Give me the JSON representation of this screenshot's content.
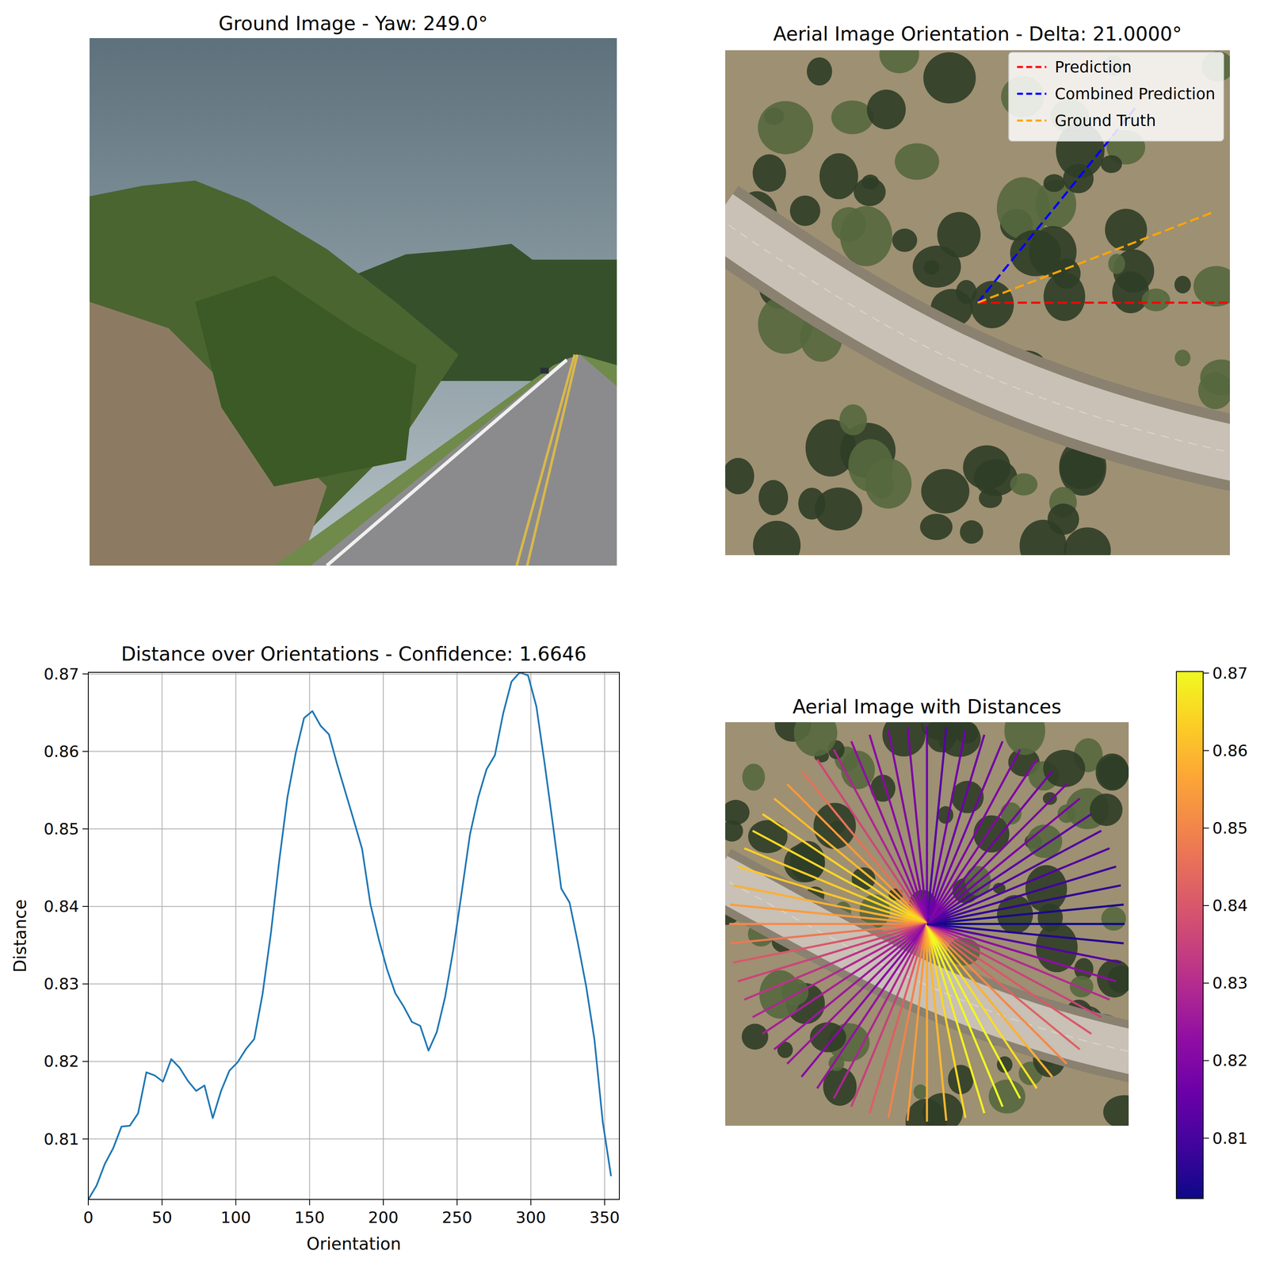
{
  "chart_data": [
    {
      "type": "image",
      "title": "Ground Image - Yaw: 249.0°"
    },
    {
      "type": "orientation_lines",
      "title": "Aerial Image Orientation - Delta: 21.0000°",
      "legend": "upper right",
      "series": [
        {
          "name": "Prediction",
          "color": "#ff0000",
          "line_style": "dashed",
          "values": [
            0
          ]
        },
        {
          "name": "Combined Prediction",
          "color": "#0000ff",
          "line_style": "dashed",
          "values": [
            51
          ]
        },
        {
          "name": "Ground Truth",
          "color": "#ffa500",
          "line_style": "dashed",
          "values": [
            21
          ]
        }
      ]
    },
    {
      "type": "line",
      "title": "Distance over Orientations - Confidence: 1.6646",
      "x_label": "Orientation",
      "y_label": "Distance",
      "color": "#1f77b4",
      "grid": true,
      "x": [
        0,
        5.625,
        11.25,
        16.875,
        22.5,
        28.125,
        33.75,
        39.375,
        45,
        50.625,
        56.25,
        61.875,
        67.5,
        73.125,
        78.75,
        84.375,
        90,
        95.625,
        101.25,
        106.875,
        112.5,
        118.125,
        123.75,
        129.375,
        135,
        140.625,
        146.25,
        151.875,
        157.5,
        163.125,
        168.75,
        174.375,
        180,
        185.625,
        191.25,
        196.875,
        202.5,
        208.125,
        213.75,
        219.375,
        225,
        230.625,
        236.25,
        241.875,
        247.5,
        253.125,
        258.75,
        264.375,
        270,
        275.625,
        281.25,
        286.875,
        292.5,
        298.125,
        303.75,
        309.375,
        315,
        320.625,
        326.25,
        331.875,
        337.5,
        343.125,
        348.75,
        354.375
      ],
      "values": [
        0.8022,
        0.804,
        0.8068,
        0.8088,
        0.8116,
        0.8117,
        0.8133,
        0.8186,
        0.8182,
        0.8174,
        0.8203,
        0.8192,
        0.8175,
        0.8162,
        0.8169,
        0.8127,
        0.8162,
        0.8188,
        0.8199,
        0.8216,
        0.8229,
        0.8287,
        0.8365,
        0.8458,
        0.8541,
        0.8598,
        0.8643,
        0.8652,
        0.8633,
        0.8622,
        0.8583,
        0.8547,
        0.8511,
        0.8474,
        0.8403,
        0.8358,
        0.8319,
        0.8288,
        0.8271,
        0.8251,
        0.8246,
        0.8214,
        0.8238,
        0.8283,
        0.8345,
        0.8418,
        0.8493,
        0.8541,
        0.8577,
        0.8595,
        0.8649,
        0.869,
        0.8702,
        0.8698,
        0.8658,
        0.8584,
        0.8505,
        0.8423,
        0.8405,
        0.8353,
        0.8297,
        0.8228,
        0.8122,
        0.8052
      ],
      "xlim": [
        0,
        360
      ],
      "ylim": [
        0.8022,
        0.8702
      ],
      "xticks": [
        0,
        50,
        100,
        150,
        200,
        250,
        300,
        350
      ],
      "yticks": [
        0.81,
        0.82,
        0.83,
        0.84,
        0.85,
        0.86,
        0.87
      ]
    },
    {
      "type": "radial",
      "title": "Aerial Image with Distances",
      "x": [
        0,
        5.625,
        11.25,
        16.875,
        22.5,
        28.125,
        33.75,
        39.375,
        45,
        50.625,
        56.25,
        61.875,
        67.5,
        73.125,
        78.75,
        84.375,
        90,
        95.625,
        101.25,
        106.875,
        112.5,
        118.125,
        123.75,
        129.375,
        135,
        140.625,
        146.25,
        151.875,
        157.5,
        163.125,
        168.75,
        174.375,
        180,
        185.625,
        191.25,
        196.875,
        202.5,
        208.125,
        213.75,
        219.375,
        225,
        230.625,
        236.25,
        241.875,
        247.5,
        253.125,
        258.75,
        264.375,
        270,
        275.625,
        281.25,
        286.875,
        292.5,
        298.125,
        303.75,
        309.375,
        315,
        320.625,
        326.25,
        331.875,
        337.5,
        343.125,
        348.75,
        354.375
      ],
      "values": [
        0.8022,
        0.804,
        0.8068,
        0.8088,
        0.8116,
        0.8117,
        0.8133,
        0.8186,
        0.8182,
        0.8174,
        0.8203,
        0.8192,
        0.8175,
        0.8162,
        0.8169,
        0.8127,
        0.8162,
        0.8188,
        0.8199,
        0.8216,
        0.8229,
        0.8287,
        0.8365,
        0.8458,
        0.8541,
        0.8598,
        0.8643,
        0.8652,
        0.8633,
        0.8622,
        0.8583,
        0.8547,
        0.8511,
        0.8474,
        0.8403,
        0.8358,
        0.8319,
        0.8288,
        0.8271,
        0.8251,
        0.8246,
        0.8214,
        0.8238,
        0.8283,
        0.8345,
        0.8418,
        0.8493,
        0.8541,
        0.8577,
        0.8595,
        0.8649,
        0.869,
        0.8702,
        0.8698,
        0.8658,
        0.8584,
        0.8505,
        0.8423,
        0.8405,
        0.8353,
        0.8297,
        0.8228,
        0.8122,
        0.8052
      ],
      "colorbar": {
        "range": [
          0.8022,
          0.8702
        ],
        "ticks": [
          0.81,
          0.82,
          0.83,
          0.84,
          0.85,
          0.86,
          0.87
        ]
      }
    }
  ]
}
